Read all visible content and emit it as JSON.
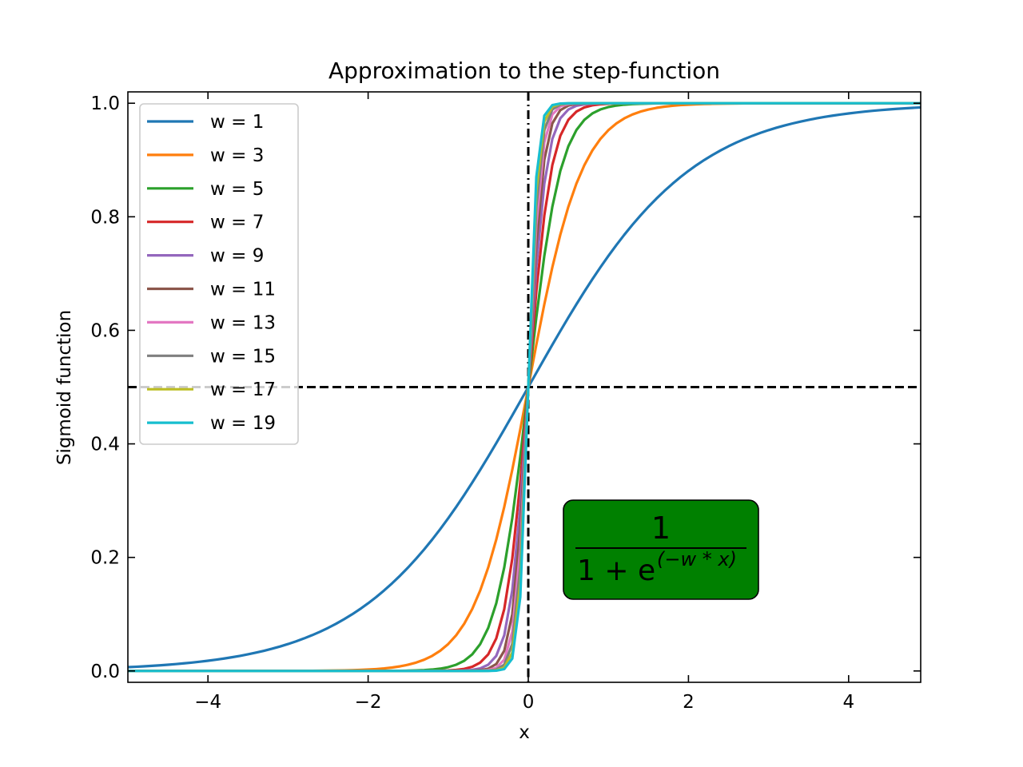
{
  "chart_data": {
    "type": "line",
    "title": "Approximation to the step-function",
    "xlabel": "x",
    "ylabel": "Sigmoid function",
    "xlim": [
      -5.0,
      4.9
    ],
    "ylim": [
      -0.02,
      1.02
    ],
    "xticks": [
      -4,
      -2,
      0,
      2,
      4
    ],
    "xtick_labels": [
      "−4",
      "−2",
      "0",
      "2",
      "4"
    ],
    "yticks": [
      0.0,
      0.2,
      0.4,
      0.6,
      0.8,
      1.0
    ],
    "ytick_labels": [
      "0.0",
      "0.2",
      "0.4",
      "0.6",
      "0.8",
      "1.0"
    ],
    "function": "1 / (1 + exp(-w * x))",
    "x_sampling": {
      "start": -5.0,
      "stop": 4.9,
      "step": 0.1
    },
    "series": [
      {
        "name": "w = 1",
        "w": 1,
        "color": "#1f77b4"
      },
      {
        "name": "w = 3",
        "w": 3,
        "color": "#ff7f0e"
      },
      {
        "name": "w = 5",
        "w": 5,
        "color": "#2ca02c"
      },
      {
        "name": "w = 7",
        "w": 7,
        "color": "#d62728"
      },
      {
        "name": "w = 9",
        "w": 9,
        "color": "#9467bd"
      },
      {
        "name": "w = 11",
        "w": 11,
        "color": "#8c564b"
      },
      {
        "name": "w = 13",
        "w": 13,
        "color": "#e377c2"
      },
      {
        "name": "w = 15",
        "w": 15,
        "color": "#7f7f7f"
      },
      {
        "name": "w = 17",
        "w": 17,
        "color": "#bcbd22"
      },
      {
        "name": "w = 19",
        "w": 19,
        "color": "#17becf"
      }
    ],
    "reference_lines": [
      {
        "orientation": "horizontal",
        "value": 0.5,
        "style": "dashed",
        "color": "#000000"
      },
      {
        "orientation": "vertical",
        "value": 0,
        "style": "dash-dot",
        "upper_segment": "dash-dot",
        "lower_segment": "dashed",
        "color": "#000000"
      }
    ],
    "legend_position": "upper left",
    "grid": false,
    "annotation": {
      "numerator": "1",
      "denominator_base": "1 + e",
      "exponent": "(−w * x)",
      "box_color": "#008000"
    }
  }
}
